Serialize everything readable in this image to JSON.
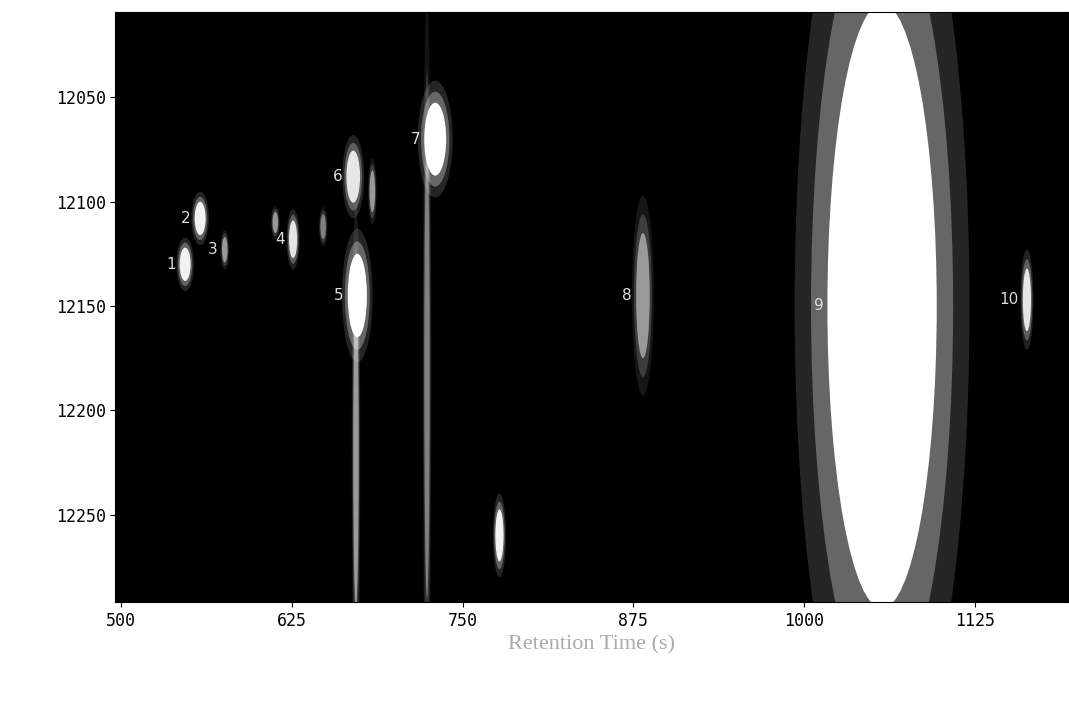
{
  "chart_data": {
    "type": "image",
    "x_label": "Retention Time (s)",
    "xlim": [
      496,
      1193
    ],
    "ylim": [
      12292,
      12009
    ],
    "xticks": [
      500,
      625,
      750,
      875,
      1000,
      1125
    ],
    "yticks": [
      12050,
      12100,
      12150,
      12200,
      12250
    ],
    "grid": false,
    "spots": [
      {
        "label": "1",
        "x": 547,
        "y": 12130,
        "width": 8,
        "height": 16,
        "intensity": 0.95
      },
      {
        "label": "2",
        "x": 558,
        "y": 12108,
        "width": 8,
        "height": 16,
        "intensity": 0.95
      },
      {
        "label": "3",
        "x": 576,
        "y": 12123,
        "width": 4,
        "height": 12,
        "intensity": 0.6
      },
      {
        "label": "4",
        "x": 626,
        "y": 12118,
        "width": 6,
        "height": 18,
        "intensity": 0.9
      },
      {
        "label": null,
        "x": 613,
        "y": 12110,
        "width": 4,
        "height": 10,
        "intensity": 0.6
      },
      {
        "label": null,
        "x": 648,
        "y": 12112,
        "width": 4,
        "height": 12,
        "intensity": 0.5
      },
      {
        "label": null,
        "x": 672,
        "y": 12220,
        "width": 4,
        "height": 150,
        "intensity": 0.6
      },
      {
        "label": "5",
        "x": 673,
        "y": 12145,
        "width": 14,
        "height": 40,
        "intensity": 1.0
      },
      {
        "label": "6",
        "x": 670,
        "y": 12088,
        "width": 10,
        "height": 25,
        "intensity": 0.9
      },
      {
        "label": null,
        "x": 684,
        "y": 12095,
        "width": 4,
        "height": 20,
        "intensity": 0.6
      },
      {
        "label": null,
        "x": 724,
        "y": 12180,
        "width": 4,
        "height": 220,
        "intensity": 0.5
      },
      {
        "label": "7",
        "x": 730,
        "y": 12070,
        "width": 16,
        "height": 35,
        "intensity": 1.0
      },
      {
        "label": null,
        "x": 777,
        "y": 12260,
        "width": 6,
        "height": 25,
        "intensity": 0.95
      },
      {
        "label": "8",
        "x": 882,
        "y": 12145,
        "width": 10,
        "height": 60,
        "intensity": 0.6
      },
      {
        "label": "9",
        "x": 1057,
        "y": 12150,
        "width": 80,
        "height": 290,
        "intensity": 1.0
      },
      {
        "label": "10",
        "x": 1163,
        "y": 12147,
        "width": 6,
        "height": 30,
        "intensity": 0.9
      }
    ]
  }
}
